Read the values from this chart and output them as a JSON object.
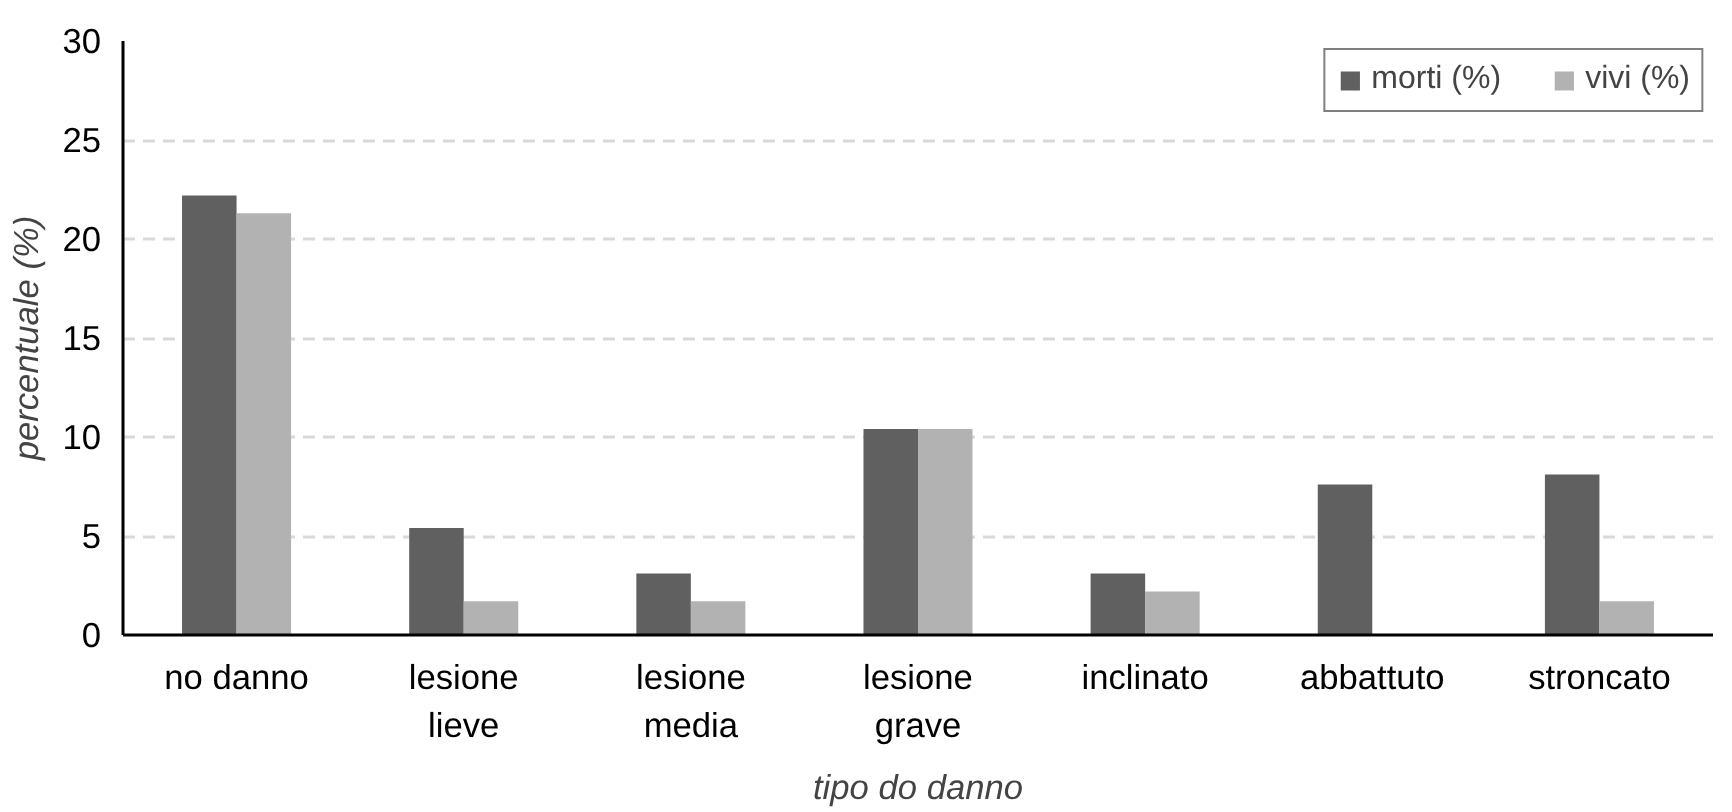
{
  "chart_data": {
    "type": "bar",
    "xlabel": "tipo do danno",
    "ylabel": "percentuale (%)",
    "categories": [
      "no danno",
      "lesione\nlieve",
      "lesione\nmedia",
      "lesione\ngrave",
      "inclinato",
      "abbattuto",
      "stroncato"
    ],
    "series": [
      {
        "name": "morti (%)",
        "color": "#606060",
        "values": [
          22.2,
          5.4,
          3.1,
          10.4,
          3.1,
          7.6,
          8.1
        ]
      },
      {
        "name": "vivi (%)",
        "color": "#b2b2b2",
        "values": [
          21.3,
          1.7,
          1.7,
          10.4,
          2.2,
          0,
          1.7
        ]
      }
    ],
    "ylim": [
      0,
      30
    ],
    "yticks": [
      0,
      5,
      10,
      15,
      20,
      25,
      30
    ],
    "grid": "y",
    "legend": "top right"
  }
}
